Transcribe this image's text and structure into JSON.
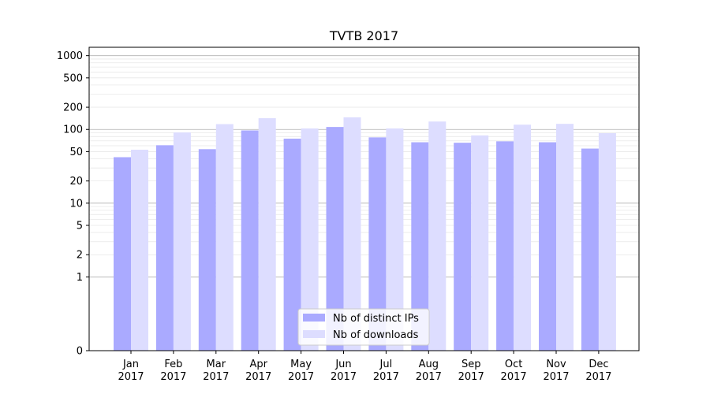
{
  "chart_data": {
    "type": "bar",
    "title": "TVTB 2017",
    "xlabel": "",
    "ylabel": "",
    "y_scale": "symlog",
    "ylim": [
      0,
      1300
    ],
    "y_ticks": [
      0,
      1,
      2,
      5,
      10,
      20,
      50,
      100,
      200,
      500,
      1000
    ],
    "grid": true,
    "legend_placement": "bottom-center",
    "categories": [
      {
        "month": "Jan",
        "year": "2017"
      },
      {
        "month": "Feb",
        "year": "2017"
      },
      {
        "month": "Mar",
        "year": "2017"
      },
      {
        "month": "Apr",
        "year": "2017"
      },
      {
        "month": "May",
        "year": "2017"
      },
      {
        "month": "Jun",
        "year": "2017"
      },
      {
        "month": "Jul",
        "year": "2017"
      },
      {
        "month": "Aug",
        "year": "2017"
      },
      {
        "month": "Sep",
        "year": "2017"
      },
      {
        "month": "Oct",
        "year": "2017"
      },
      {
        "month": "Nov",
        "year": "2017"
      },
      {
        "month": "Dec",
        "year": "2017"
      }
    ],
    "series": [
      {
        "name": "Nb of distinct IPs",
        "color": "#aaaaff",
        "values": [
          42,
          61,
          54,
          97,
          75,
          108,
          78,
          67,
          66,
          69,
          67,
          55
        ]
      },
      {
        "name": "Nb of downloads",
        "color": "#ddddff",
        "values": [
          53,
          91,
          118,
          142,
          103,
          146,
          103,
          128,
          83,
          116,
          119,
          89
        ]
      }
    ]
  }
}
